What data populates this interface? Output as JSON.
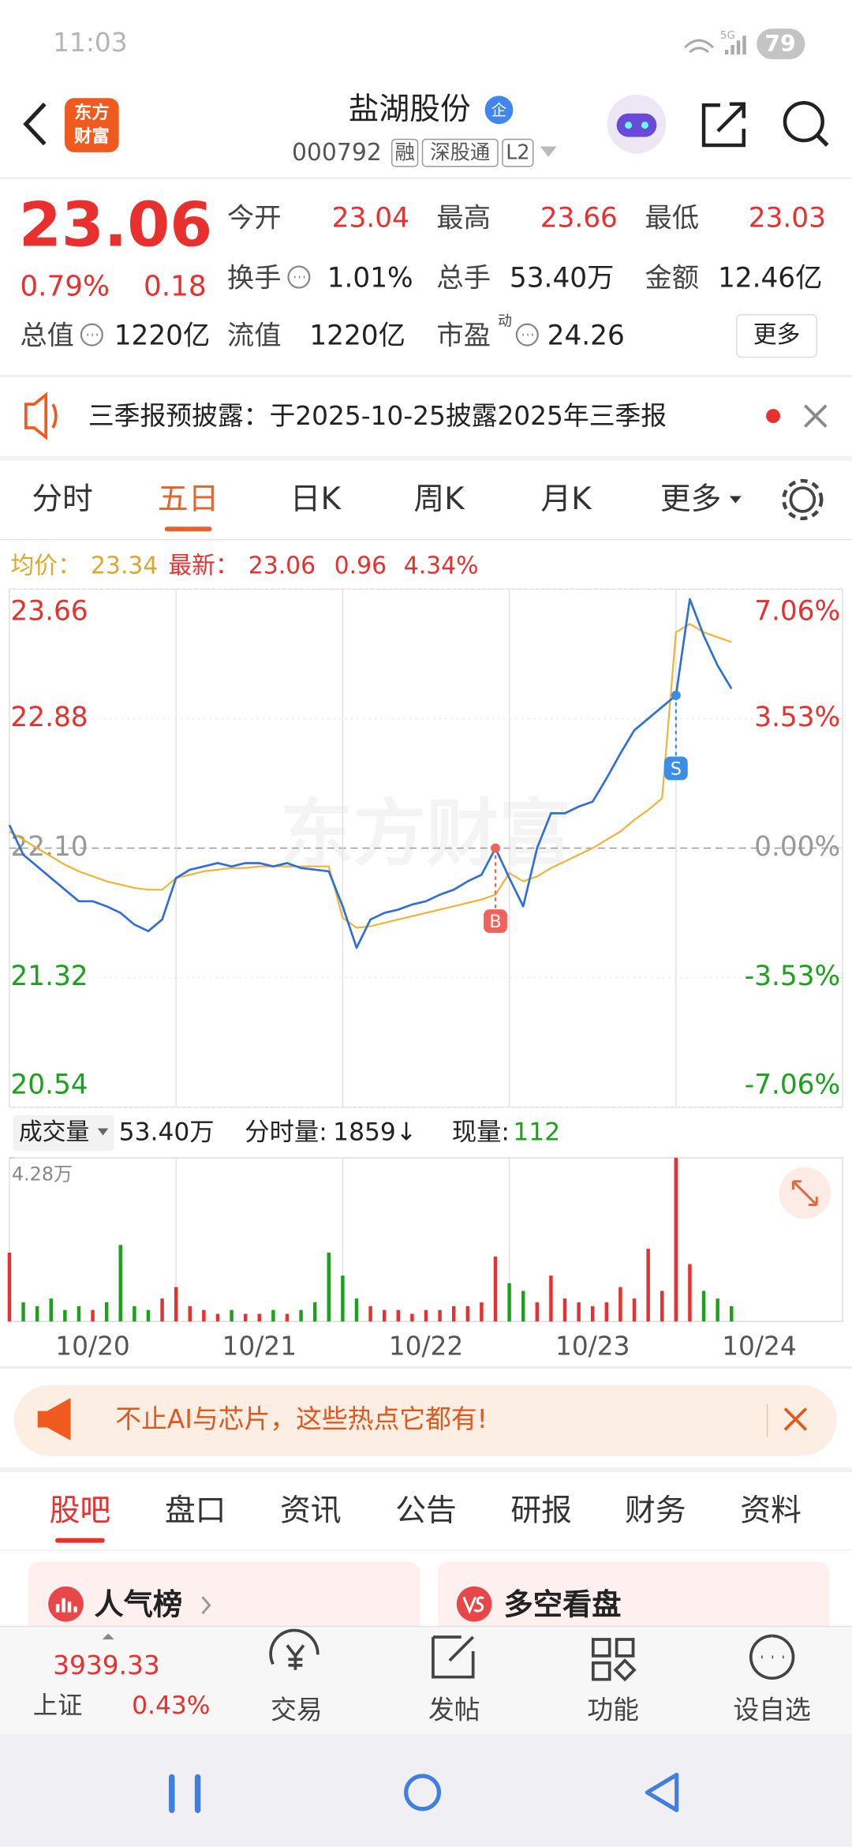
{
  "status_bar": {
    "time": "11:03",
    "network": "5G",
    "battery": "79"
  },
  "header": {
    "logo": [
      "东方",
      "财富"
    ],
    "name": "盐湖股份",
    "badge": "企",
    "code": "000792",
    "tags": [
      "融",
      "深股通",
      "L2"
    ]
  },
  "quote": {
    "price": "23.06",
    "change_pct": "0.79%",
    "change": "0.18",
    "fields": [
      {
        "label": "今开",
        "value": "23.04",
        "color": "#e8312f"
      },
      {
        "label": "最高",
        "value": "23.66",
        "color": "#e8312f"
      },
      {
        "label": "最低",
        "value": "23.03",
        "color": "#e8312f"
      },
      {
        "label": "换手",
        "value": "1.01%",
        "info": true
      },
      {
        "label": "总手",
        "value": "53.40万"
      },
      {
        "label": "金额",
        "value": "12.46亿"
      },
      {
        "label": "总值",
        "value": "1220亿",
        "info": true
      },
      {
        "label": "流值",
        "value": "1220亿"
      },
      {
        "label": "市盈",
        "sup": "动",
        "value": "24.26",
        "info": true
      }
    ],
    "more": "更多"
  },
  "notice": {
    "text": "三季报预披露：于2025-10-25披露2025年三季报"
  },
  "tabs": {
    "items": [
      "分时",
      "五日",
      "日K",
      "周K",
      "月K",
      "更多"
    ],
    "active": 1
  },
  "chart_info": {
    "avg_label": "均价：",
    "avg": "23.34",
    "latest_label": "最新：",
    "latest": "23.06",
    "change": "0.96",
    "change_pct": "4.34%"
  },
  "chart_data": {
    "type": "line",
    "watermark": "东方财富",
    "x": [
      0,
      1,
      2,
      3,
      4,
      5,
      6,
      7,
      8,
      9,
      10,
      11,
      12,
      13,
      14,
      15,
      16,
      17,
      18,
      19,
      20,
      21,
      22,
      23,
      24,
      25,
      26,
      27,
      28,
      29,
      30,
      31,
      32,
      33,
      34,
      35,
      36,
      37,
      38,
      39,
      40,
      41,
      42,
      43,
      44,
      45,
      46,
      47,
      48,
      49,
      50,
      51,
      52
    ],
    "xlim": [
      0,
      60
    ],
    "xticks": [
      {
        "value": 6,
        "label": "10/20"
      },
      {
        "value": 18,
        "label": "10/21"
      },
      {
        "value": 30,
        "label": "10/22"
      },
      {
        "value": 42,
        "label": "10/23"
      },
      {
        "value": 54,
        "label": "10/24"
      }
    ],
    "ylim": [
      20.54,
      23.66
    ],
    "yticks": [
      23.66,
      22.88,
      {
        "value": 22.1,
        "label": "22.10"
      },
      21.32,
      20.54
    ],
    "y2lim": [
      -7.06,
      7.06
    ],
    "y2ticks": [
      {
        "value": 7.06,
        "label": "7.06%"
      },
      {
        "value": 3.53,
        "label": "3.53%"
      },
      {
        "value": 0,
        "label": "0.00%"
      },
      {
        "value": -3.53,
        "label": "-3.53%"
      },
      {
        "value": -7.06,
        "label": "-7.06%"
      }
    ],
    "series": [
      {
        "color": "#2f6fd6",
        "values": [
          22.24,
          22.06,
          21.99,
          21.92,
          21.85,
          21.78,
          21.78,
          21.75,
          21.71,
          21.64,
          21.6,
          21.67,
          21.92,
          21.97,
          21.99,
          22.01,
          21.99,
          22.01,
          22.01,
          21.99,
          22.01,
          21.98,
          21.97,
          21.96,
          21.75,
          21.5,
          21.67,
          21.71,
          21.73,
          21.76,
          21.78,
          21.82,
          21.85,
          21.9,
          21.94,
          22.1,
          21.92,
          21.75,
          22.1,
          22.31,
          22.31,
          22.35,
          22.38,
          22.52,
          22.67,
          22.81,
          22.88,
          22.95,
          23.02,
          23.6,
          23.38,
          23.2,
          23.06
        ]
      },
      {
        "color": "#f0b43c",
        "values": [
          22.2,
          22.15,
          22.1,
          22.05,
          22.0,
          21.96,
          21.93,
          21.9,
          21.88,
          21.86,
          21.85,
          21.85,
          21.92,
          21.94,
          21.96,
          21.97,
          21.98,
          21.98,
          21.99,
          21.99,
          21.99,
          21.99,
          21.99,
          21.99,
          21.68,
          21.62,
          21.63,
          21.65,
          21.67,
          21.69,
          21.71,
          21.73,
          21.75,
          21.77,
          21.79,
          21.82,
          21.95,
          21.9,
          21.93,
          21.98,
          22.02,
          22.06,
          22.1,
          22.15,
          22.2,
          22.27,
          22.33,
          22.4,
          23.4,
          23.45,
          23.4,
          23.37,
          23.34
        ]
      }
    ],
    "markers": [
      {
        "label": "B",
        "x": 35,
        "color": "#f0625a"
      },
      {
        "label": "S",
        "x": 48,
        "color": "#3a8ee6"
      }
    ]
  },
  "volume": {
    "label": "成交量",
    "total": "53.40万",
    "fs_label": "分时量:",
    "fs_value": "1859↓",
    "now_label": "现量:",
    "now_value": "112",
    "ylim": [
      0,
      4.28
    ],
    "yticks": [
      {
        "value": 4.28,
        "label": "4.28万"
      }
    ],
    "values": [
      1.8,
      0.5,
      0.4,
      0.6,
      0.3,
      0.4,
      0.3,
      0.5,
      2.0,
      0.4,
      0.3,
      0.6,
      0.9,
      0.4,
      0.3,
      0.2,
      0.3,
      0.2,
      0.2,
      0.3,
      0.2,
      0.3,
      0.5,
      1.8,
      1.2,
      0.6,
      0.4,
      0.3,
      0.3,
      0.2,
      0.3,
      0.3,
      0.4,
      0.4,
      0.5,
      1.7,
      1.0,
      0.8,
      0.5,
      1.2,
      0.6,
      0.5,
      0.4,
      0.5,
      0.9,
      0.6,
      1.9,
      0.8,
      4.28,
      1.5,
      0.8,
      0.6,
      0.4
    ],
    "up_color": "#e8312f",
    "down_color": "#1aa31a"
  },
  "banner": {
    "text": "不止AI与芯片，这些热点它都有!"
  },
  "section_tabs": {
    "items": [
      "股吧",
      "盘口",
      "资讯",
      "公告",
      "研报",
      "财务",
      "资料"
    ],
    "active": 0
  },
  "cards": [
    "人气榜",
    "多空看盘"
  ],
  "footer": {
    "index_value": "3939.33",
    "index_name": "上证",
    "index_pct": "0.43%",
    "items": [
      "交易",
      "发帖",
      "功能",
      "设自选"
    ]
  }
}
